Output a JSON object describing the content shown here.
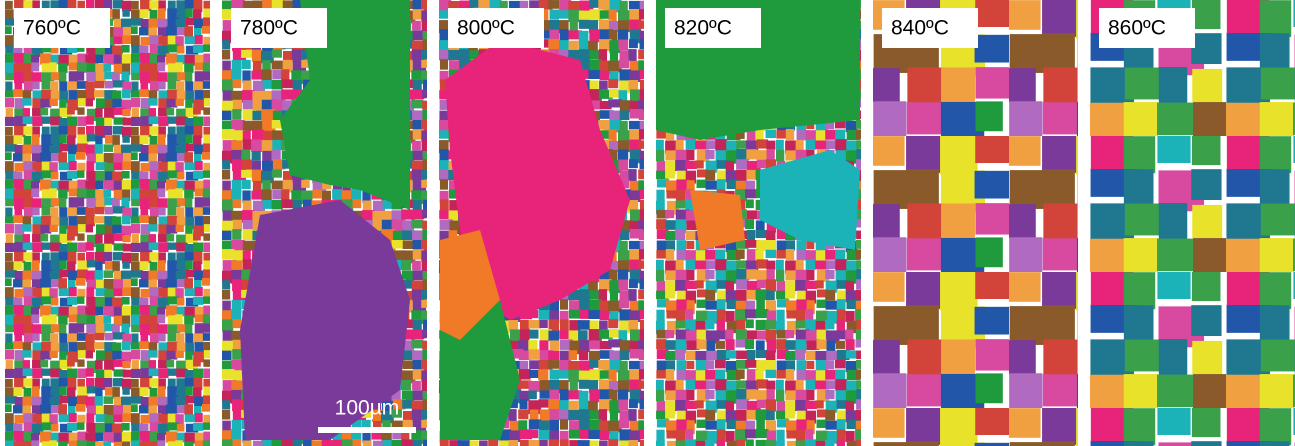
{
  "panels": [
    {
      "label": "760ºC"
    },
    {
      "label": "780ºC"
    },
    {
      "label": "800ºC"
    },
    {
      "label": "820ºC"
    },
    {
      "label": "840ºC"
    },
    {
      "label": "860ºC"
    }
  ],
  "scale_bar": {
    "label": "100µm"
  }
}
